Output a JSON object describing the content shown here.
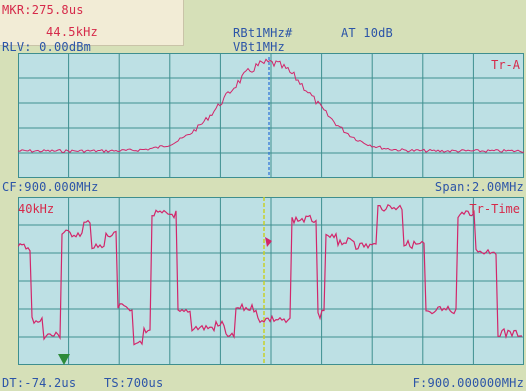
{
  "header": {
    "marker_line1": "MKR:275.8us",
    "marker_line2": "44.5kHz",
    "rbw": "RBt1MHz#",
    "attenuation": "AT 10dB",
    "vbw": "VBt1MHz",
    "ref_level": "RLV: 0.00dBm"
  },
  "top_panel": {
    "trace_label": "Tr-A"
  },
  "middle_bar": {
    "center_freq": "CF:900.000MHz",
    "span": "Span:2.00MHz"
  },
  "bottom_panel": {
    "scale_label": "40kHz",
    "trace_label": "Tr-Time"
  },
  "footer": {
    "delta_time": "DT:-74.2us",
    "time_scale": "TS:700us",
    "frequency": "F:900.000000MHz"
  },
  "colors": {
    "trace": "#d2266a",
    "grid": "#3e8f8f",
    "screen_bg": "#bde0e4",
    "marker_line_top": "#2a6fd6",
    "marker_line_bottom": "#c8cf2a",
    "marker_triangle": "#2e8b3a"
  }
}
